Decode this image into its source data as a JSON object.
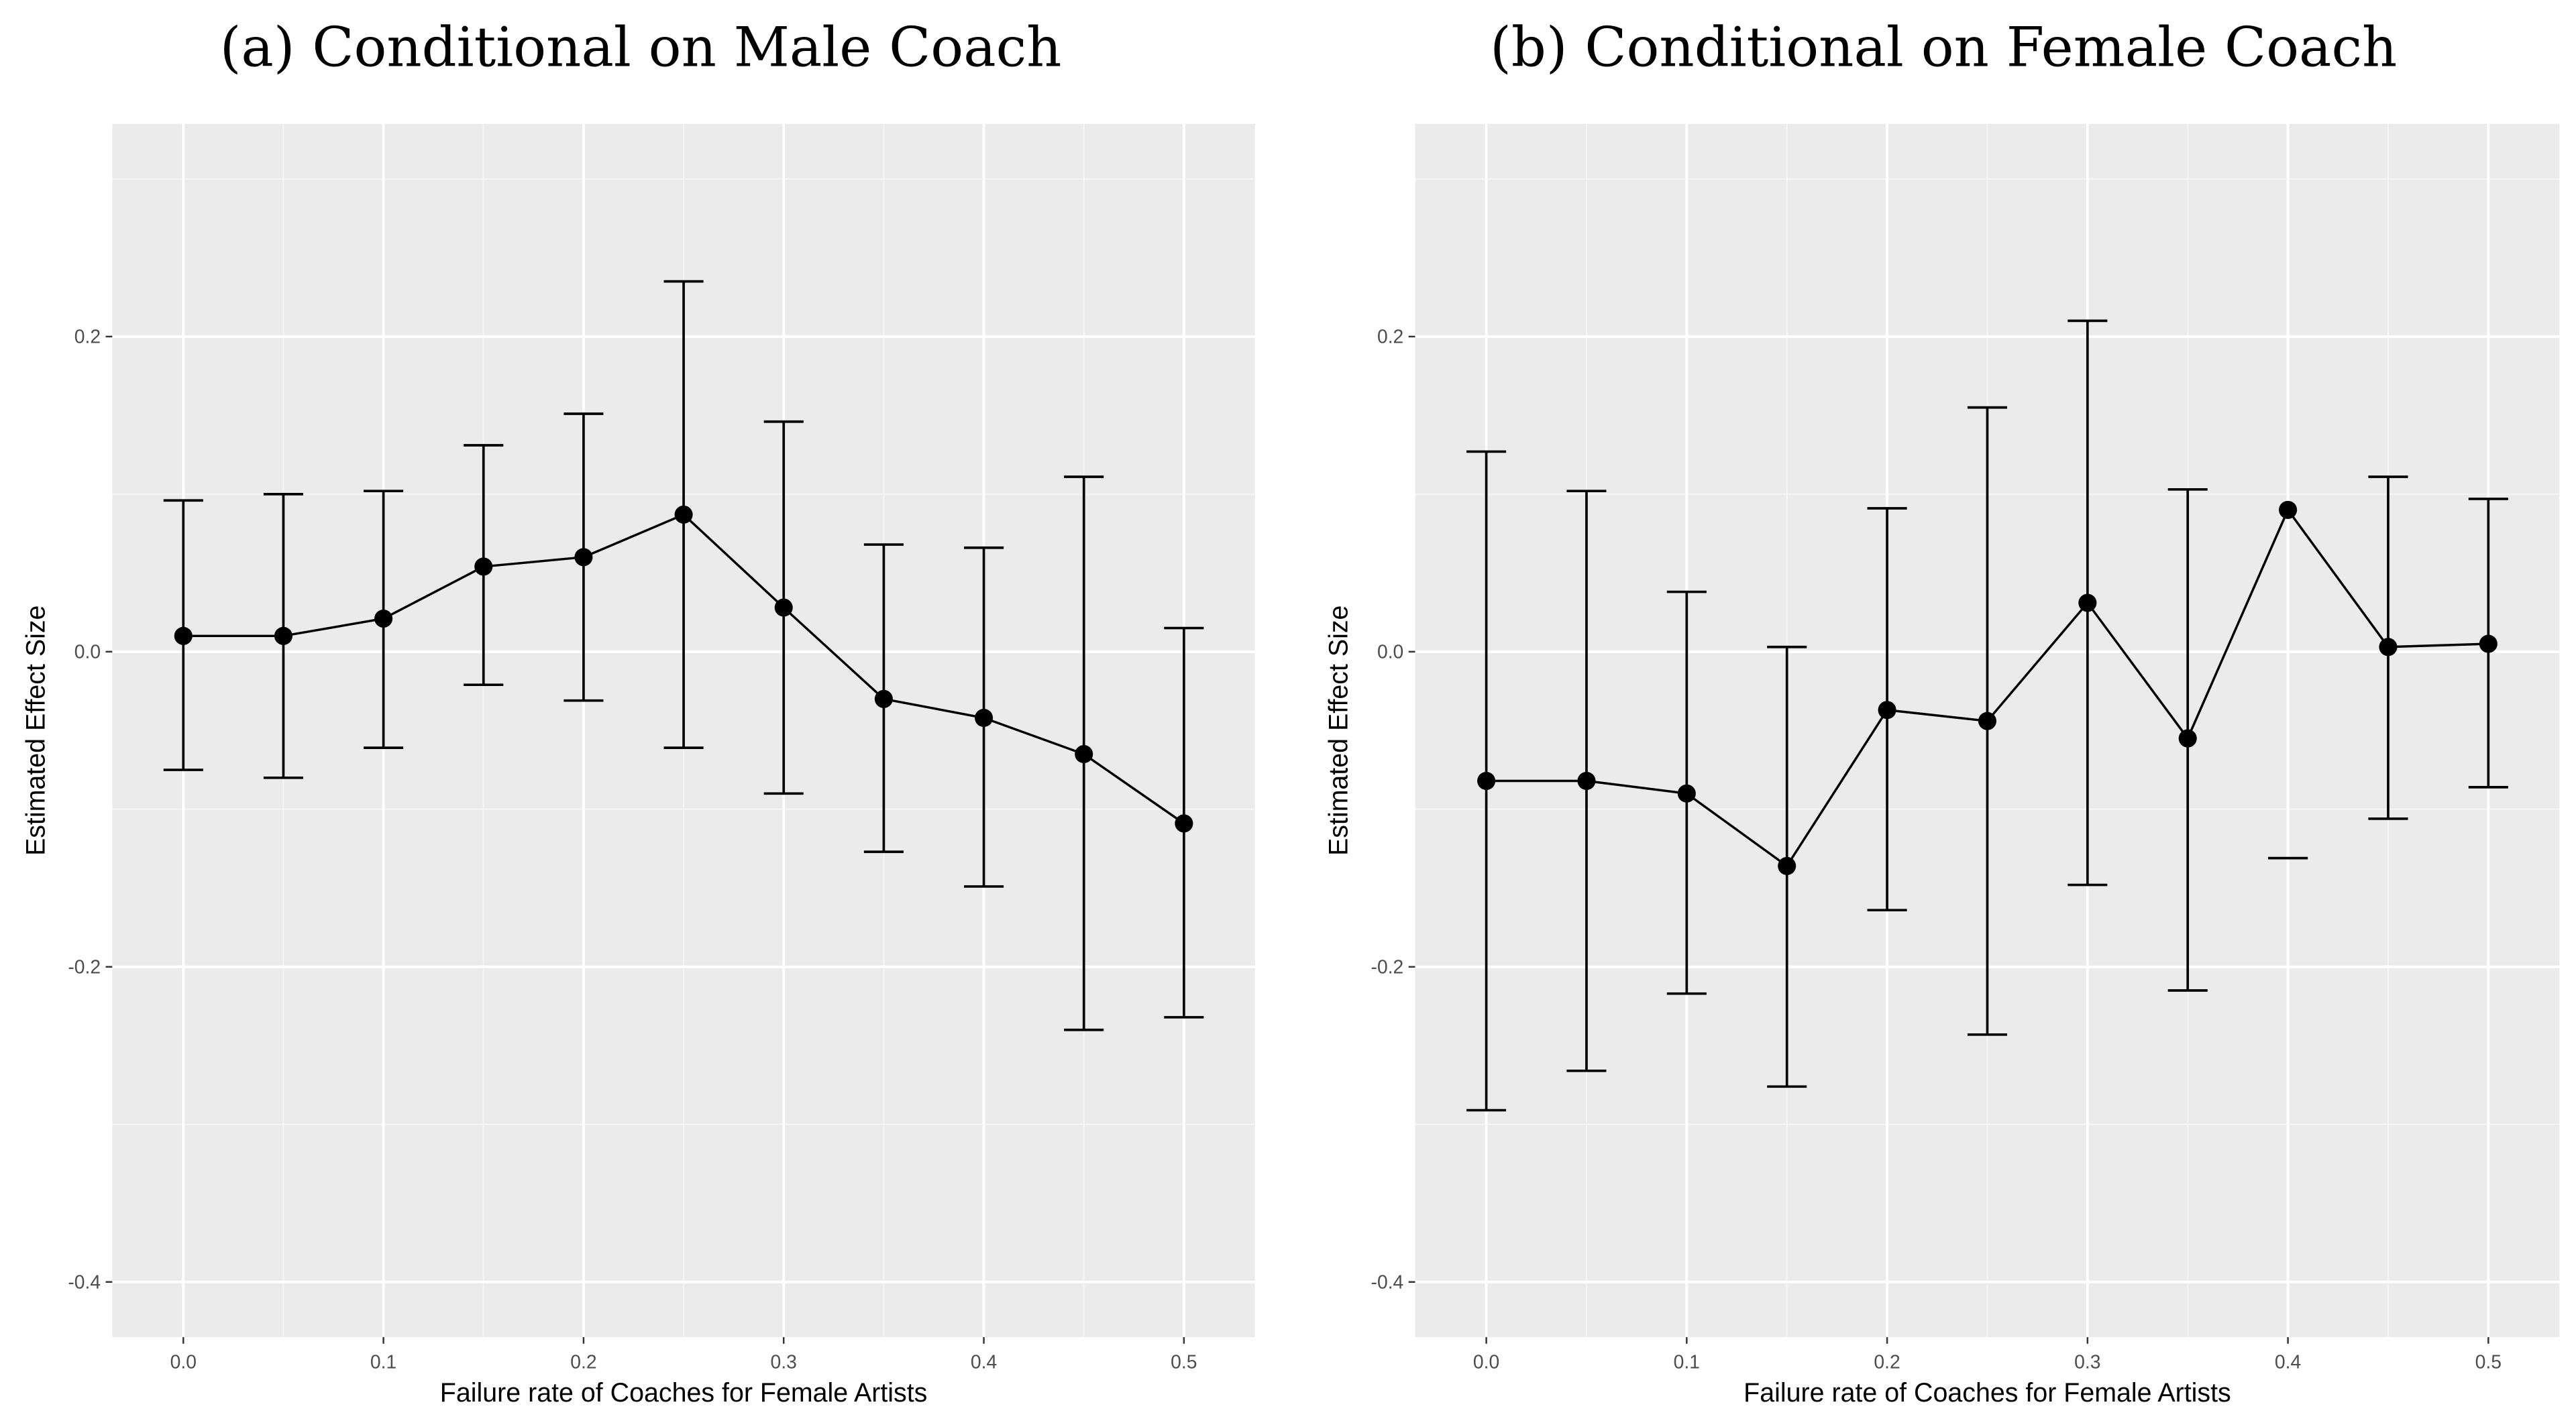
{
  "chart_data": [
    {
      "type": "scatter",
      "title": "(a) Conditional on Male Coach",
      "xlabel": "Failure rate of Coaches for Female Artists",
      "ylabel": "Estimated Effect Size",
      "xlim": [
        -0.0355,
        0.5355
      ],
      "ylim": [
        -0.435,
        0.335
      ],
      "xticks": [
        "0.0",
        "0.1",
        "0.2",
        "0.3",
        "0.4",
        "0.5"
      ],
      "yticks": [
        "-0.4",
        "-0.2",
        "0.0",
        "0.2"
      ],
      "grid": true,
      "background": "#ebebeb",
      "points": [
        {
          "x": 0.0,
          "y": 0.01,
          "lower": -0.075,
          "upper": 0.096
        },
        {
          "x": 0.05,
          "y": 0.01,
          "lower": -0.08,
          "upper": 0.1
        },
        {
          "x": 0.1,
          "y": 0.021,
          "lower": -0.061,
          "upper": 0.102
        },
        {
          "x": 0.15,
          "y": 0.054,
          "lower": -0.021,
          "upper": 0.131
        },
        {
          "x": 0.2,
          "y": 0.06,
          "lower": -0.031,
          "upper": 0.151
        },
        {
          "x": 0.25,
          "y": 0.087,
          "lower": -0.061,
          "upper": 0.235
        },
        {
          "x": 0.3,
          "y": 0.028,
          "lower": -0.09,
          "upper": 0.146
        },
        {
          "x": 0.35,
          "y": -0.03,
          "lower": -0.127,
          "upper": 0.068
        },
        {
          "x": 0.4,
          "y": -0.042,
          "lower": -0.149,
          "upper": 0.066
        },
        {
          "x": 0.45,
          "y": -0.065,
          "lower": -0.24,
          "upper": 0.111
        },
        {
          "x": 0.5,
          "y": -0.109,
          "lower": -0.232,
          "upper": 0.015
        }
      ]
    },
    {
      "type": "scatter",
      "title": "(b) Conditional on Female Coach",
      "xlabel": "Failure rate of Coaches for Female Artists",
      "ylabel": "Estimated Effect Size",
      "xlim": [
        -0.0355,
        0.5355
      ],
      "ylim": [
        -0.435,
        0.335
      ],
      "xticks": [
        "0.0",
        "0.1",
        "0.2",
        "0.3",
        "0.4",
        "0.5"
      ],
      "yticks": [
        "-0.4",
        "-0.2",
        "0.0",
        "0.2"
      ],
      "grid": true,
      "background": "#ebebeb",
      "points": [
        {
          "x": 0.0,
          "y": -0.082,
          "lower": -0.291,
          "upper": 0.127
        },
        {
          "x": 0.05,
          "y": -0.082,
          "lower": -0.266,
          "upper": 0.102
        },
        {
          "x": 0.1,
          "y": -0.09,
          "lower": -0.217,
          "upper": 0.038
        },
        {
          "x": 0.15,
          "y": -0.136,
          "lower": -0.276,
          "upper": 0.003
        },
        {
          "x": 0.2,
          "y": -0.037,
          "lower": -0.164,
          "upper": 0.091
        },
        {
          "x": 0.25,
          "y": -0.044,
          "lower": -0.243,
          "upper": 0.155
        },
        {
          "x": 0.3,
          "y": 0.031,
          "lower": -0.148,
          "upper": 0.21
        },
        {
          "x": 0.35,
          "y": -0.055,
          "lower": -0.215,
          "upper": 0.103
        },
        {
          "x": 0.4,
          "y": 0.09,
          "lower": -0.131,
          "upper": null
        },
        {
          "x": 0.45,
          "y": 0.003,
          "lower": -0.106,
          "upper": 0.111
        },
        {
          "x": 0.5,
          "y": 0.005,
          "lower": -0.086,
          "upper": 0.097
        }
      ]
    }
  ]
}
